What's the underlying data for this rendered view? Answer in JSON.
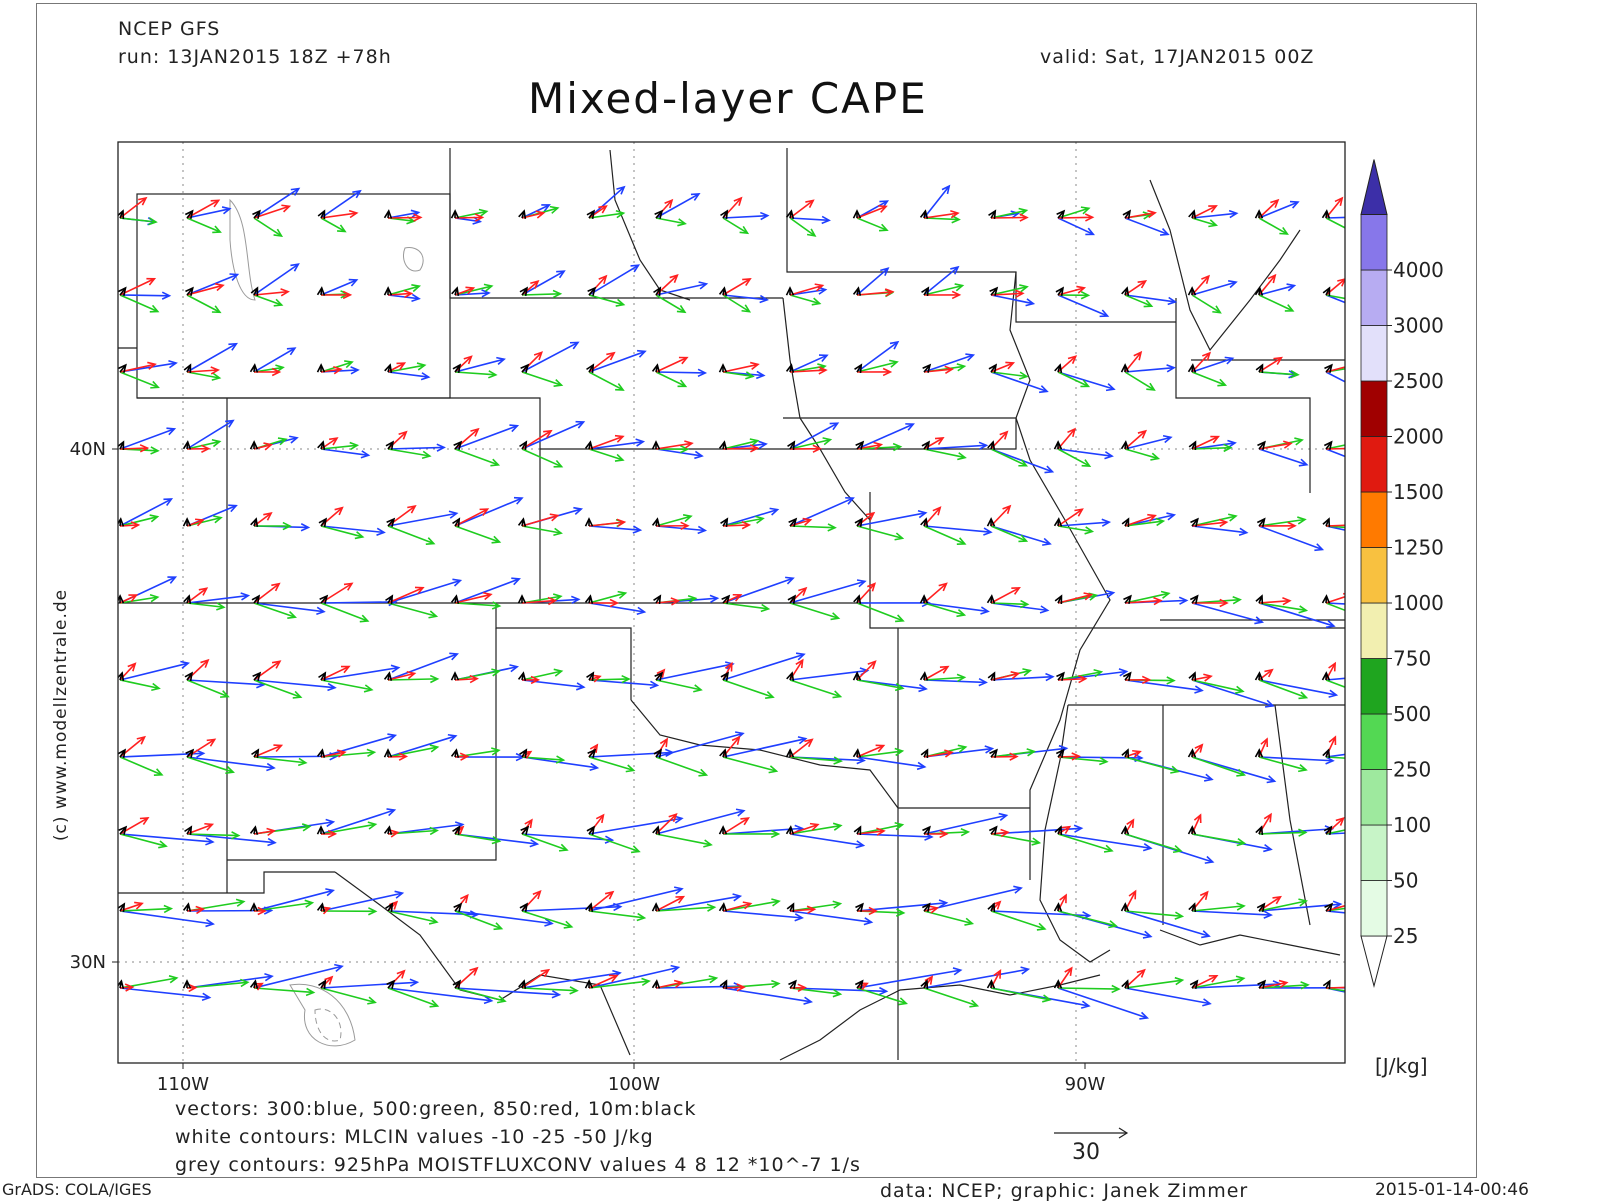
{
  "header": {
    "model": "NCEP GFS",
    "run": "run: 13JAN2015 18Z +78h",
    "valid": "valid: Sat, 17JAN2015 00Z",
    "title": "Mixed-layer CAPE"
  },
  "map": {
    "lat_labels": [
      {
        "text": "40N",
        "value": 40
      },
      {
        "text": "30N",
        "value": 30
      }
    ],
    "lon_labels": [
      {
        "text": "110W",
        "value": -110
      },
      {
        "text": "100W",
        "value": -100
      },
      {
        "text": "90W",
        "value": -90
      }
    ],
    "vector_colors": {
      "300hPa": "#1f3fff",
      "500hPa": "#1fcc1f",
      "850hPa": "#ff2020",
      "10m": "#000000"
    }
  },
  "legend_lines": {
    "vectors": "vectors: 300:blue, 500:green, 850:red, 10m:black",
    "white_contours": "white contours: MLCIN values -10 -25 -50 J/kg",
    "grey_contours": "grey contours: 925hPa MOISTFLUXCONV values 4 8 12 *10^-7 1/s"
  },
  "reference_vector": {
    "value": "30"
  },
  "colorbar": {
    "unit": "[J/kg]",
    "levels": [
      {
        "label": "25",
        "color": "#e4fbe4"
      },
      {
        "label": "50",
        "color": "#c7f4c7"
      },
      {
        "label": "100",
        "color": "#9ee99e"
      },
      {
        "label": "250",
        "color": "#53d853"
      },
      {
        "label": "500",
        "color": "#1fa51f"
      },
      {
        "label": "750",
        "color": "#f2efb0"
      },
      {
        "label": "1000",
        "color": "#f8c140"
      },
      {
        "label": "1250",
        "color": "#ff7a00"
      },
      {
        "label": "1500",
        "color": "#e01a10"
      },
      {
        "label": "2000",
        "color": "#a00000"
      },
      {
        "label": "2500",
        "color": "#e2e0fa"
      },
      {
        "label": "3000",
        "color": "#b7acf2"
      },
      {
        "label": "4000",
        "color": "#8777ea"
      }
    ],
    "top_color": "#5343c8",
    "extend_color": "#3c2fa8"
  },
  "watermark": "(c) www.modellzentrale.de",
  "footer": {
    "left": "GrADS: COLA/IGES",
    "center": "data: NCEP; graphic: Janek Zimmer",
    "right": "2015-01-14-00:46"
  }
}
